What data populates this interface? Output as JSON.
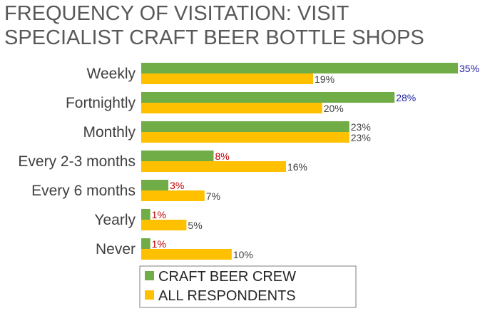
{
  "chart_data": {
    "type": "bar",
    "orientation": "horizontal",
    "title_lines": [
      "FREQUENCY OF VISITATION: VISIT",
      "SPECIALIST CRAFT BEER BOTTLE SHOPS"
    ],
    "categories": [
      "Weekly",
      "Fortnightly",
      "Monthly",
      "Every 2-3 months",
      "Every 6 months",
      "Yearly",
      "Never"
    ],
    "series": [
      {
        "name": "CRAFT BEER CREW",
        "color": "#70ad47",
        "values": [
          35,
          28,
          23,
          8,
          3,
          1,
          1
        ],
        "labels": [
          "35%",
          "28%",
          "23%",
          "8%",
          "3%",
          "1%",
          "1%"
        ],
        "label_colors": [
          "#1f1fa0",
          "#1f1fa0",
          "#404040",
          "#c00000",
          "#c00000",
          "#c00000",
          "#c00000"
        ]
      },
      {
        "name": "ALL RESPONDENTS",
        "color": "#ffc000",
        "values": [
          19,
          20,
          23,
          16,
          7,
          5,
          10
        ],
        "labels": [
          "19%",
          "20%",
          "23%",
          "16%",
          "7%",
          "5%",
          "10%"
        ],
        "label_colors": [
          "#404040",
          "#404040",
          "#404040",
          "#404040",
          "#404040",
          "#404040",
          "#404040"
        ]
      }
    ],
    "xlim": [
      0,
      35
    ],
    "grid": false,
    "legend": "bottom"
  }
}
